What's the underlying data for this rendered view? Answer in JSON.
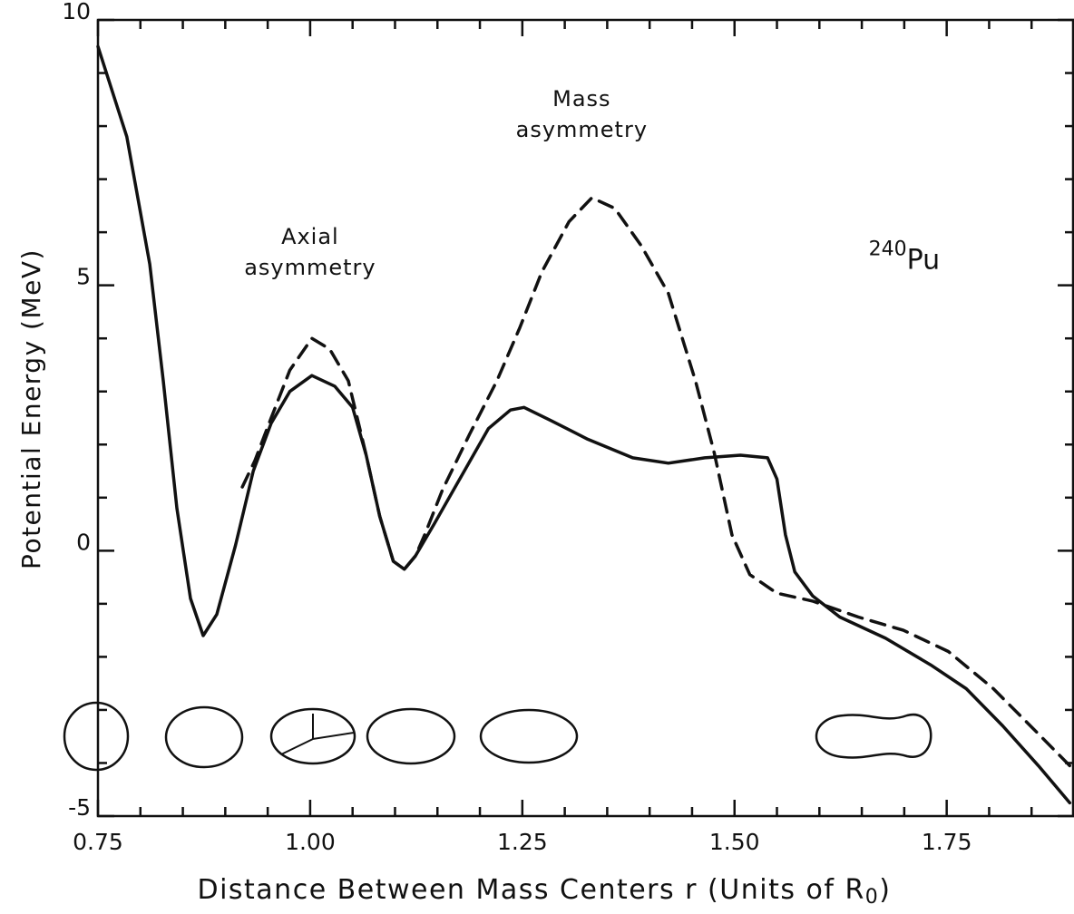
{
  "chart_data": {
    "type": "line",
    "ylabel": "Potential Energy (MeV)",
    "xlabel": {
      "text": "Distance Between Mass Centers r (Units of R",
      "sub": "0",
      "end": ")"
    },
    "annotations": [
      {
        "lines": [
          "Mass",
          "asymmetry"
        ],
        "x": 1.32,
        "y": 8.5
      },
      {
        "lines": [
          "Axial",
          "asymmetry"
        ],
        "x": 1.0,
        "y": 5.9
      },
      {
        "sup": "240",
        "text": "Pu",
        "x": 1.7,
        "y": 5.5
      }
    ],
    "xlim": [
      0.75,
      1.9
    ],
    "ylim": [
      -5,
      10
    ],
    "xticks": [
      0.75,
      {
        "value": 1,
        "label": "1.00"
      },
      1.25,
      {
        "value": 1.5,
        "label": "1.50"
      },
      1.75
    ],
    "yticks": [
      -5,
      0,
      5,
      10
    ],
    "xticks_minor": [
      0.8,
      0.85,
      0.9,
      0.95,
      1.05,
      1.1,
      1.15,
      1.2,
      1.3,
      1.35,
      1.4,
      1.45,
      1.55,
      1.6,
      1.65,
      1.7,
      1.8,
      1.85
    ],
    "yticks_minor": [
      -4,
      -3,
      -2,
      -1,
      1,
      2,
      3,
      4,
      6,
      7,
      8,
      9
    ],
    "series": [
      {
        "color": "#111111",
        "dashed": false,
        "x": [
          0.75,
          0.784,
          0.811,
          0.827,
          0.843,
          0.859,
          0.874,
          0.89,
          0.912,
          0.933,
          0.954,
          0.976,
          1.002,
          1.029,
          1.05,
          1.066,
          1.082,
          1.098,
          1.111,
          1.124,
          1.146,
          1.178,
          1.21,
          1.236,
          1.252,
          1.284,
          1.327,
          1.38,
          1.422,
          1.465,
          1.507,
          1.539,
          1.55,
          1.56,
          1.571,
          1.592,
          1.624,
          1.678,
          1.731,
          1.773,
          1.816,
          1.858,
          1.895
        ],
        "values": [
          9.5,
          7.8,
          5.4,
          3.2,
          0.8,
          -0.9,
          -1.6,
          -1.2,
          0.1,
          1.5,
          2.4,
          3.0,
          3.3,
          3.1,
          2.7,
          1.8,
          0.65,
          -0.2,
          -0.35,
          -0.1,
          0.5,
          1.4,
          2.3,
          2.65,
          2.7,
          2.45,
          2.1,
          1.75,
          1.65,
          1.75,
          1.8,
          1.75,
          1.35,
          0.3,
          -0.4,
          -0.85,
          -1.25,
          -1.65,
          -2.15,
          -2.6,
          -3.3,
          -4.05,
          -4.75
        ]
      },
      {
        "color": "#111111",
        "dashed": true,
        "x": [
          0.92,
          0.935,
          0.954,
          0.976,
          1.002,
          1.023,
          1.045,
          1.066,
          1.082,
          1.098,
          1.111,
          1.124,
          1.135,
          1.156,
          1.188,
          1.22,
          1.247,
          1.273,
          1.305,
          1.332,
          1.359,
          1.39,
          1.422,
          1.454,
          1.476,
          1.497,
          1.518,
          1.55,
          1.592,
          1.646,
          1.699,
          1.752,
          1.805,
          1.858,
          1.895
        ],
        "values": [
          1.2,
          1.7,
          2.5,
          3.4,
          4.0,
          3.8,
          3.2,
          1.8,
          0.65,
          -0.2,
          -0.35,
          -0.1,
          0.3,
          1.15,
          2.2,
          3.2,
          4.2,
          5.25,
          6.2,
          6.65,
          6.45,
          5.75,
          4.85,
          3.2,
          1.85,
          0.3,
          -0.45,
          -0.8,
          -0.95,
          -1.25,
          -1.5,
          -1.9,
          -2.6,
          -3.45,
          -4.05
        ]
      }
    ]
  }
}
